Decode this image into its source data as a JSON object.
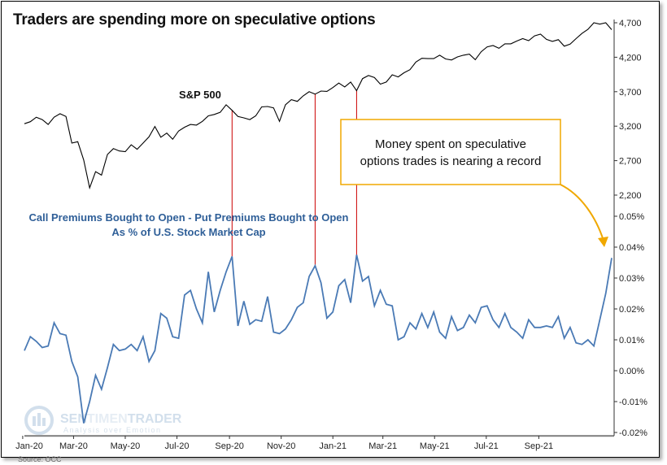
{
  "title": "Traders are spending more on speculative options",
  "source": "Source: OCC",
  "watermark": {
    "brand_left": "SEN",
    "brand_dim": "TIMEN",
    "brand_right": "TRADER",
    "tagline": "Analysis over Emotion"
  },
  "colors": {
    "spx_line": "#000000",
    "premium_line": "#4a7ab5",
    "marker_lines": "#cc0000",
    "callout_border": "#f0a800",
    "label_blue": "#2f5f98"
  },
  "chart_data": {
    "type": "line",
    "x_tick_labels": [
      "Jan-20",
      "Mar-20",
      "May-20",
      "Jul-20",
      "Sep-20",
      "Nov-20",
      "Jan-21",
      "Mar-21",
      "May-21",
      "Jul-21",
      "Sep-21"
    ],
    "x_range": [
      "2020-01-03",
      "2021-11-26"
    ],
    "series": [
      {
        "name": "S&P 500",
        "axis": "right-upper",
        "ylim": [
          2200,
          4700
        ],
        "y_tick_labels": [
          "4,700",
          "4,200",
          "3,700",
          "3,200",
          "2,700",
          "2,200"
        ],
        "x": [
          "2020-01-03",
          "2020-01-10",
          "2020-01-17",
          "2020-01-24",
          "2020-01-31",
          "2020-02-07",
          "2020-02-14",
          "2020-02-21",
          "2020-02-28",
          "2020-03-06",
          "2020-03-13",
          "2020-03-20",
          "2020-03-27",
          "2020-04-03",
          "2020-04-10",
          "2020-04-17",
          "2020-04-24",
          "2020-05-01",
          "2020-05-08",
          "2020-05-15",
          "2020-05-22",
          "2020-05-29",
          "2020-06-05",
          "2020-06-12",
          "2020-06-19",
          "2020-06-26",
          "2020-07-03",
          "2020-07-10",
          "2020-07-17",
          "2020-07-24",
          "2020-07-31",
          "2020-08-07",
          "2020-08-14",
          "2020-08-21",
          "2020-08-28",
          "2020-09-04",
          "2020-09-11",
          "2020-09-18",
          "2020-09-25",
          "2020-10-02",
          "2020-10-09",
          "2020-10-16",
          "2020-10-23",
          "2020-10-30",
          "2020-11-06",
          "2020-11-13",
          "2020-11-20",
          "2020-11-27",
          "2020-12-04",
          "2020-12-11",
          "2020-12-18",
          "2020-12-25",
          "2021-01-01",
          "2021-01-08",
          "2021-01-15",
          "2021-01-22",
          "2021-01-29",
          "2021-02-05",
          "2021-02-12",
          "2021-02-19",
          "2021-02-26",
          "2021-03-05",
          "2021-03-12",
          "2021-03-19",
          "2021-03-26",
          "2021-04-02",
          "2021-04-09",
          "2021-04-16",
          "2021-04-23",
          "2021-04-30",
          "2021-05-07",
          "2021-05-14",
          "2021-05-21",
          "2021-05-28",
          "2021-06-04",
          "2021-06-11",
          "2021-06-18",
          "2021-06-25",
          "2021-07-02",
          "2021-07-09",
          "2021-07-16",
          "2021-07-23",
          "2021-07-30",
          "2021-08-06",
          "2021-08-13",
          "2021-08-20",
          "2021-08-27",
          "2021-09-03",
          "2021-09-10",
          "2021-09-17",
          "2021-09-24",
          "2021-10-01",
          "2021-10-08",
          "2021-10-15",
          "2021-10-22",
          "2021-10-29",
          "2021-11-05",
          "2021-11-12",
          "2021-11-19",
          "2021-11-26"
        ],
        "values": [
          3235,
          3265,
          3330,
          3295,
          3225,
          3330,
          3380,
          3340,
          2955,
          2975,
          2710,
          2305,
          2540,
          2490,
          2790,
          2875,
          2840,
          2830,
          2930,
          2865,
          2955,
          3045,
          3195,
          3040,
          3100,
          3010,
          3130,
          3185,
          3225,
          3215,
          3270,
          3350,
          3370,
          3400,
          3510,
          3430,
          3340,
          3320,
          3295,
          3350,
          3480,
          3485,
          3465,
          3270,
          3510,
          3585,
          3560,
          3640,
          3700,
          3665,
          3710,
          3705,
          3760,
          3825,
          3770,
          3840,
          3715,
          3890,
          3935,
          3905,
          3810,
          3840,
          3945,
          3915,
          3975,
          4020,
          4130,
          4185,
          4180,
          4180,
          4230,
          4175,
          4160,
          4205,
          4230,
          4245,
          4165,
          4280,
          4350,
          4370,
          4330,
          4395,
          4395,
          4435,
          4470,
          4440,
          4510,
          4535,
          4460,
          4430,
          4455,
          4360,
          4390,
          4470,
          4545,
          4605,
          4700,
          4680,
          4700,
          4600
        ]
      },
      {
        "name": "Call Premiums Bought to Open - Put Premiums Bought to Open As % of U.S. Stock Market Cap",
        "axis": "right-lower",
        "ylim": [
          -0.02,
          0.05
        ],
        "y_tick_labels": [
          "0.05%",
          "0.04%",
          "0.03%",
          "0.02%",
          "0.01%",
          "0.00%",
          "-0.01%",
          "-0.02%"
        ],
        "unit": "%",
        "x": [
          "2020-01-03",
          "2020-01-10",
          "2020-01-17",
          "2020-01-24",
          "2020-01-31",
          "2020-02-07",
          "2020-02-14",
          "2020-02-21",
          "2020-02-28",
          "2020-03-06",
          "2020-03-13",
          "2020-03-20",
          "2020-03-27",
          "2020-04-03",
          "2020-04-10",
          "2020-04-17",
          "2020-04-24",
          "2020-05-01",
          "2020-05-08",
          "2020-05-15",
          "2020-05-22",
          "2020-05-29",
          "2020-06-05",
          "2020-06-12",
          "2020-06-19",
          "2020-06-26",
          "2020-07-03",
          "2020-07-10",
          "2020-07-17",
          "2020-07-24",
          "2020-07-31",
          "2020-08-07",
          "2020-08-14",
          "2020-08-21",
          "2020-08-28",
          "2020-09-04",
          "2020-09-11",
          "2020-09-18",
          "2020-09-25",
          "2020-10-02",
          "2020-10-09",
          "2020-10-16",
          "2020-10-23",
          "2020-10-30",
          "2020-11-06",
          "2020-11-13",
          "2020-11-20",
          "2020-11-27",
          "2020-12-04",
          "2020-12-11",
          "2020-12-18",
          "2020-12-25",
          "2021-01-01",
          "2021-01-08",
          "2021-01-15",
          "2021-01-22",
          "2021-01-29",
          "2021-02-05",
          "2021-02-12",
          "2021-02-19",
          "2021-02-26",
          "2021-03-05",
          "2021-03-12",
          "2021-03-19",
          "2021-03-26",
          "2021-04-02",
          "2021-04-09",
          "2021-04-16",
          "2021-04-23",
          "2021-04-30",
          "2021-05-07",
          "2021-05-14",
          "2021-05-21",
          "2021-05-28",
          "2021-06-04",
          "2021-06-11",
          "2021-06-18",
          "2021-06-25",
          "2021-07-02",
          "2021-07-09",
          "2021-07-16",
          "2021-07-23",
          "2021-07-30",
          "2021-08-06",
          "2021-08-13",
          "2021-08-20",
          "2021-08-27",
          "2021-09-03",
          "2021-09-10",
          "2021-09-17",
          "2021-09-24",
          "2021-10-01",
          "2021-10-08",
          "2021-10-15",
          "2021-10-22",
          "2021-10-29",
          "2021-11-05",
          "2021-11-12",
          "2021-11-19",
          "2021-11-26"
        ],
        "values": [
          0.0065,
          0.011,
          0.0095,
          0.0075,
          0.008,
          0.0155,
          0.012,
          0.0115,
          0.003,
          -0.002,
          -0.017,
          -0.01,
          -0.0015,
          -0.006,
          0.001,
          0.0085,
          0.0065,
          0.007,
          0.0085,
          0.0065,
          0.011,
          0.003,
          0.0065,
          0.0185,
          0.017,
          0.011,
          0.0105,
          0.0245,
          0.026,
          0.02,
          0.0155,
          0.032,
          0.019,
          0.026,
          0.032,
          0.037,
          0.0145,
          0.0225,
          0.015,
          0.0165,
          0.016,
          0.024,
          0.0125,
          0.012,
          0.0135,
          0.0165,
          0.0205,
          0.022,
          0.0305,
          0.034,
          0.0285,
          0.017,
          0.019,
          0.0275,
          0.0295,
          0.022,
          0.0375,
          0.029,
          0.0305,
          0.021,
          0.026,
          0.0215,
          0.021,
          0.01,
          0.011,
          0.0155,
          0.0135,
          0.0185,
          0.014,
          0.019,
          0.0125,
          0.0105,
          0.0175,
          0.013,
          0.014,
          0.018,
          0.0155,
          0.0205,
          0.021,
          0.0165,
          0.014,
          0.0185,
          0.014,
          0.0125,
          0.0105,
          0.0165,
          0.014,
          0.014,
          0.0145,
          0.014,
          0.0175,
          0.0105,
          0.014,
          0.009,
          0.0085,
          0.01,
          0.008,
          0.0165,
          0.025,
          0.0365
        ]
      }
    ],
    "vertical_markers": [
      "2020-09-04",
      "2020-12-11",
      "2021-01-29"
    ],
    "annotations": {
      "spx_label": "S&P 500",
      "premium_label_line1": "Call Premiums Bought to Open - Put Premiums Bought to Open",
      "premium_label_line2": "As % of U.S. Stock Market Cap",
      "callout_line1": "Money spent on speculative",
      "callout_line2": "options trades is nearing a record"
    },
    "grid": false,
    "legend": "none"
  }
}
